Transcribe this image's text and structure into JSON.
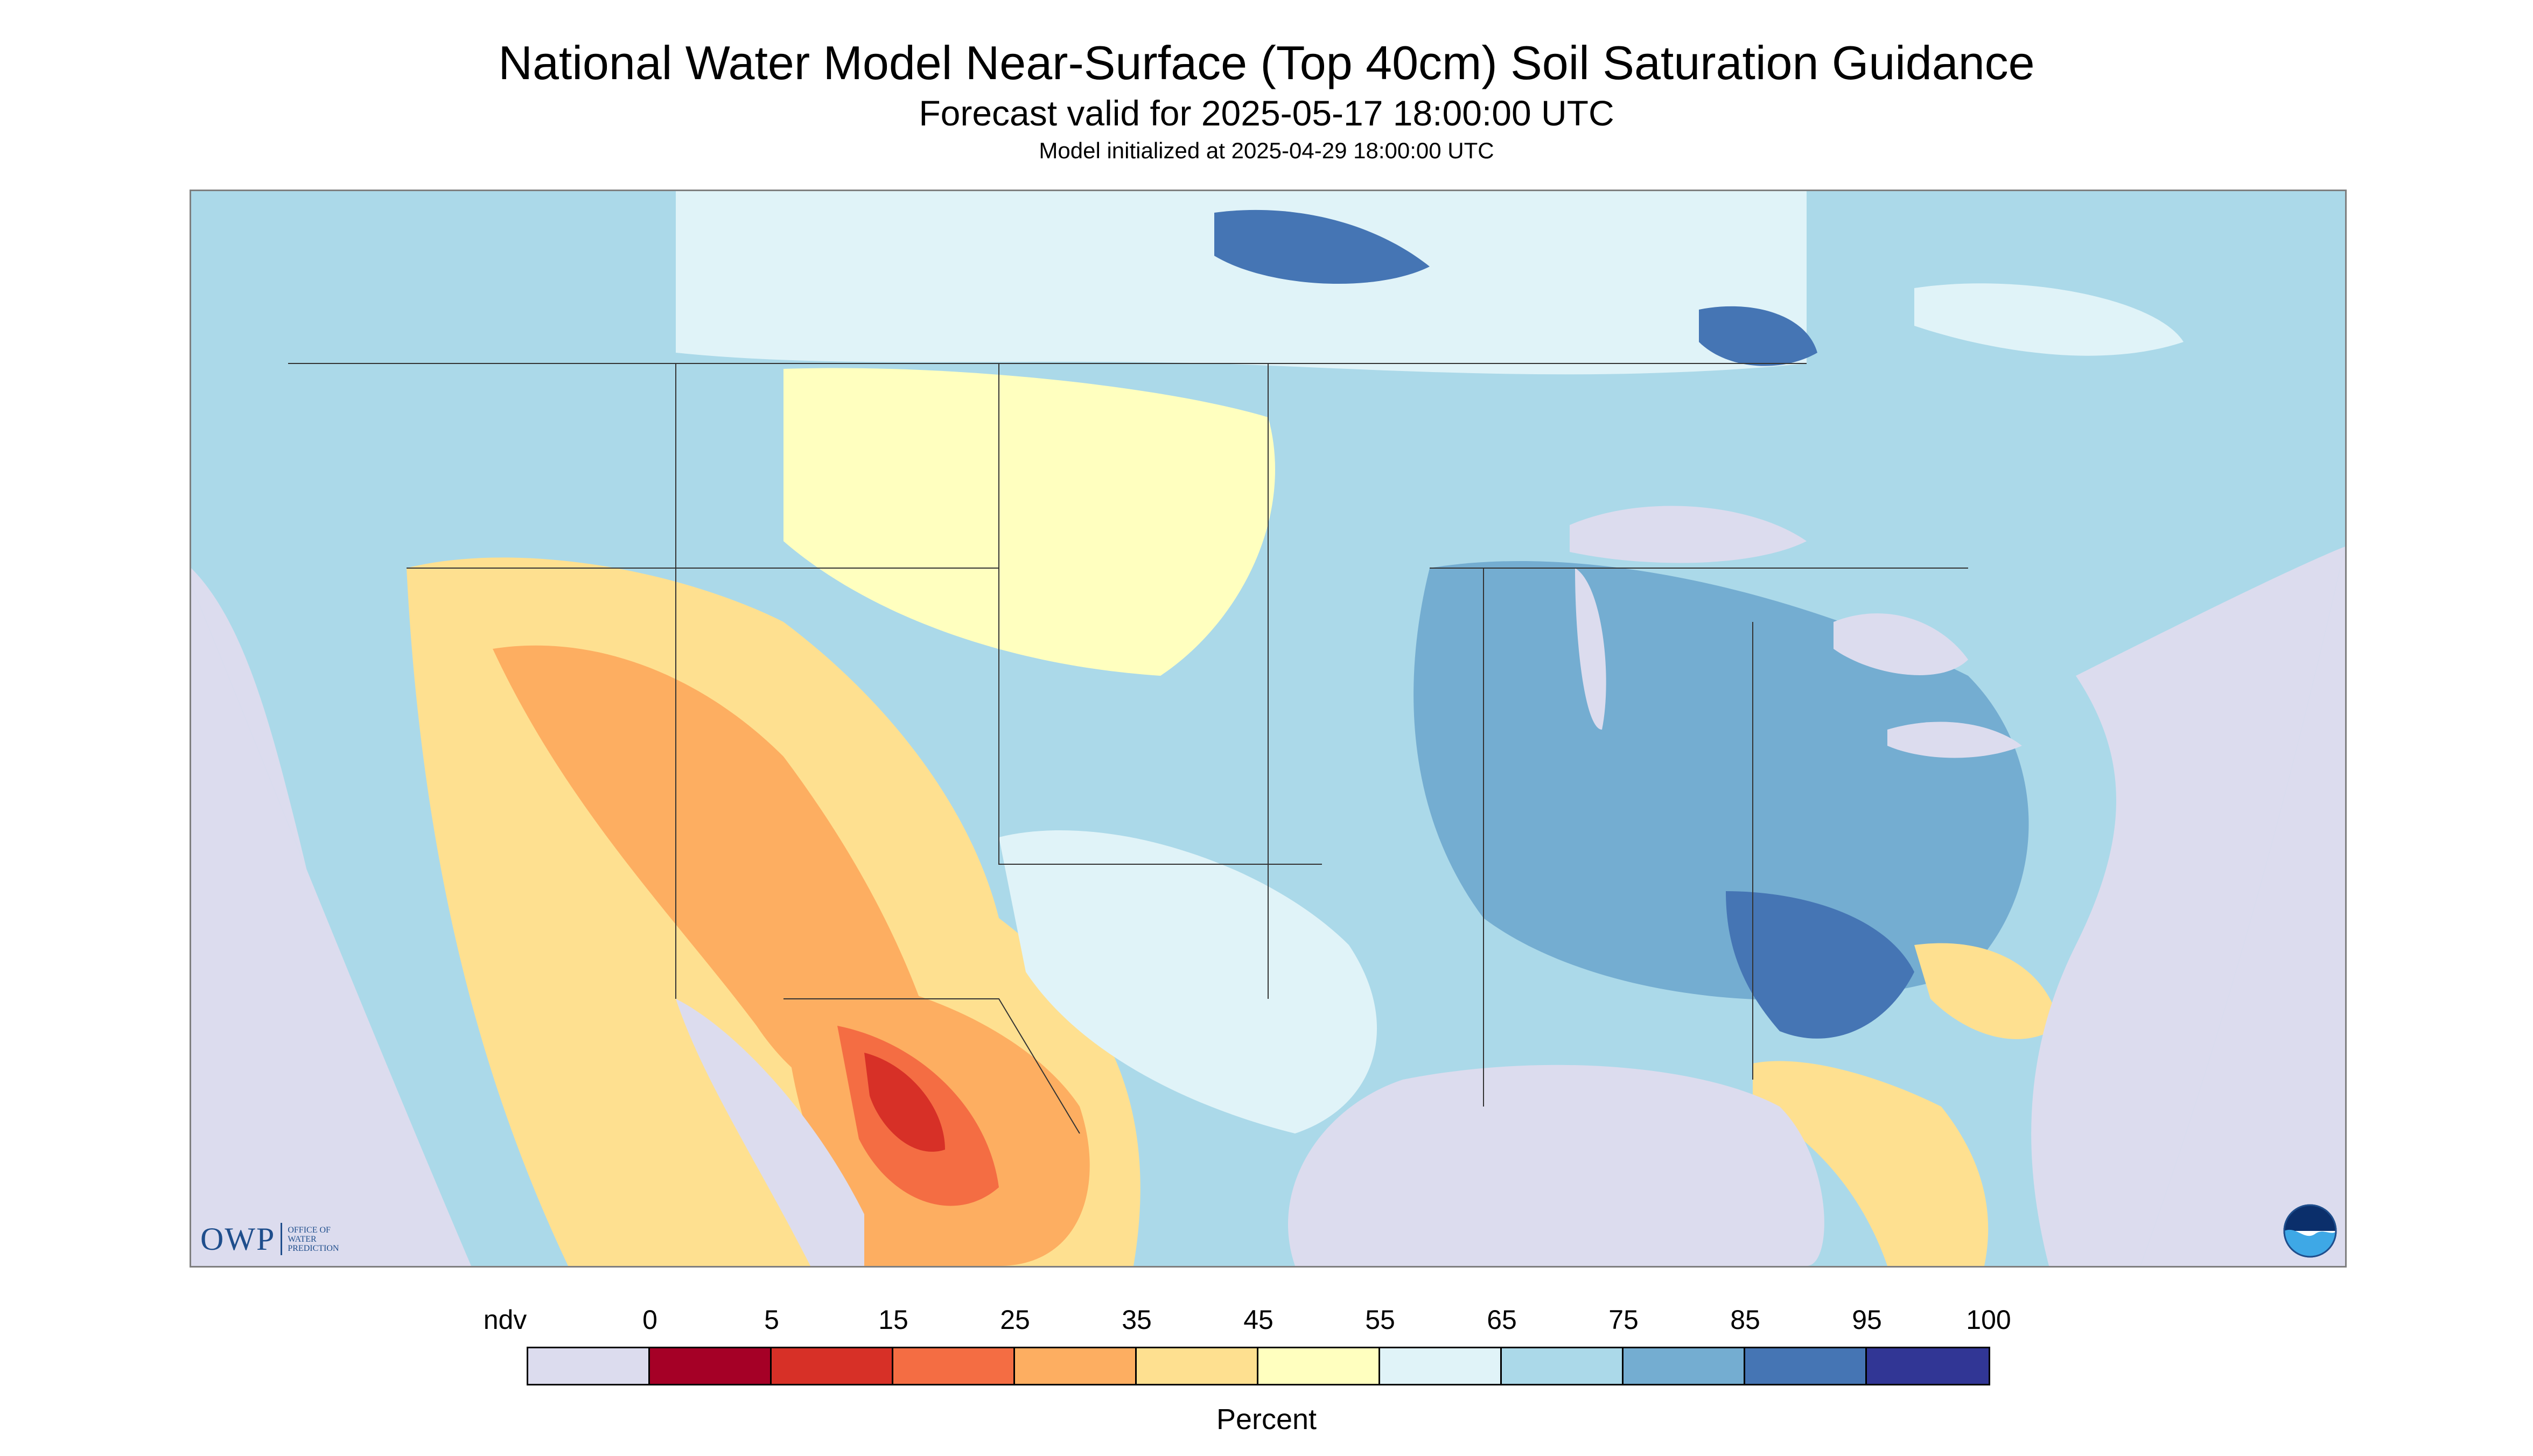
{
  "header": {
    "title": "National Water Model Near-Surface (Top 40cm) Soil Saturation Guidance",
    "subtitle": "Forecast valid for 2025-05-17 18:00:00 UTC",
    "model_init": "Model initialized at 2025-04-29 18:00:00 UTC"
  },
  "map": {
    "region": "Contiguous United States",
    "colors": {
      "ndv": "#dcdcee",
      "water": "#dcdcee",
      "state_border": "#333333"
    }
  },
  "logos": {
    "owp_letters": "OWP",
    "owp_text": "OFFICE OF\nWATER\nPREDICTION",
    "noaa_icon": "noaa-logo-icon"
  },
  "legend": {
    "unit": "Percent",
    "labels": [
      "ndv",
      "0",
      "5",
      "15",
      "25",
      "35",
      "45",
      "55",
      "65",
      "75",
      "85",
      "95",
      "100"
    ],
    "colors": [
      "#dcdcee",
      "#a50026",
      "#d73027",
      "#f46d43",
      "#fdae61",
      "#fee090",
      "#ffffbf",
      "#e0f3f8",
      "#abd9e9",
      "#74add1",
      "#4575b4",
      "#313695"
    ]
  }
}
